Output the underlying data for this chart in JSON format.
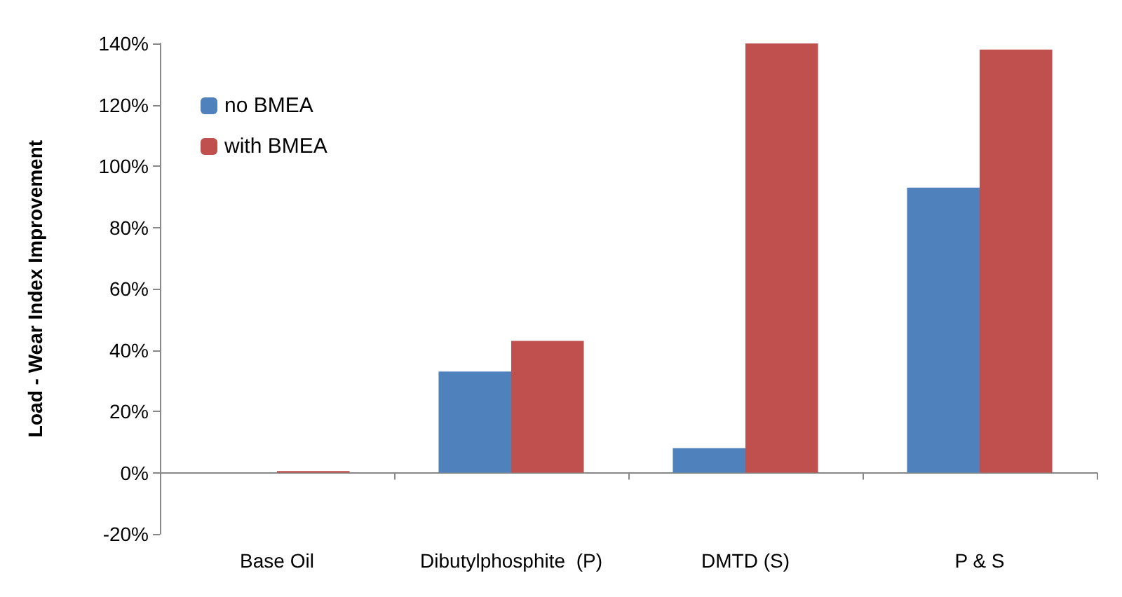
{
  "chart_data": {
    "type": "bar",
    "ylabel": "Load - Wear Index Improvement",
    "categories": [
      "Base Oil",
      "Dibutylphosphite  (P)",
      "DMTD (S)",
      "P & S"
    ],
    "series": [
      {
        "name": "no BMEA",
        "color": "#4f81bd",
        "values": [
          0,
          33,
          8,
          93
        ]
      },
      {
        "name": "with BMEA",
        "color": "#c0504d",
        "values": [
          0.5,
          43,
          140,
          138
        ]
      }
    ],
    "ylim": [
      -20,
      140
    ],
    "yticks": [
      {
        "value": -20,
        "label": "-20%"
      },
      {
        "value": 0,
        "label": "0%"
      },
      {
        "value": 20,
        "label": "20%"
      },
      {
        "value": 40,
        "label": "40%"
      },
      {
        "value": 60,
        "label": "60%"
      },
      {
        "value": 80,
        "label": "80%"
      },
      {
        "value": 100,
        "label": "100%"
      },
      {
        "value": 120,
        "label": "120%"
      },
      {
        "value": 140,
        "label": "140%"
      }
    ],
    "legend": "top left"
  }
}
